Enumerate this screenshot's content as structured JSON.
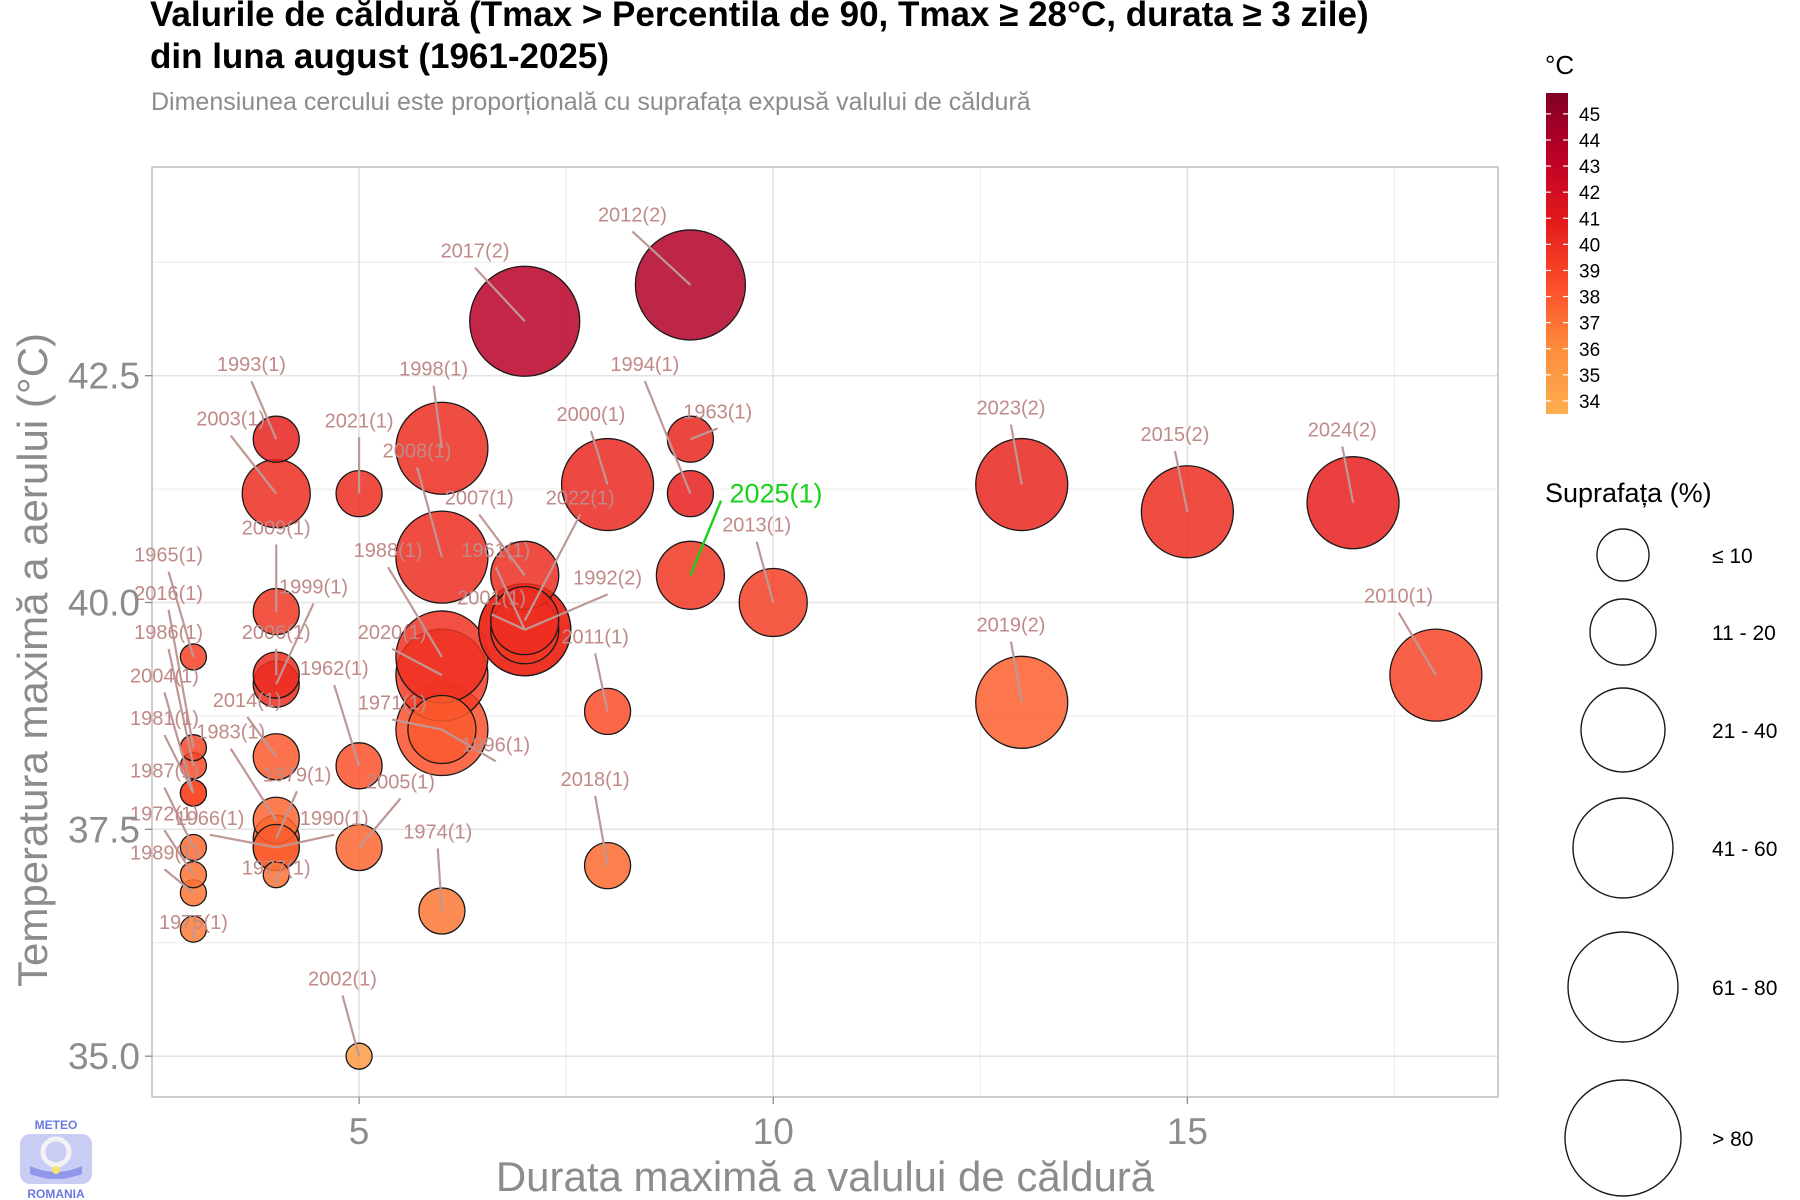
{
  "header": {
    "title_line1": "Valurile de căldură (Tmax > Percentila de 90, Tmax ≥ 28°C, durata ≥ 3 zile)",
    "title_line2": "din luna august (1961-2025)",
    "subtitle": "Dimensiunea cercului este proporțională cu suprafața expusă valului de căldură"
  },
  "logo": {
    "top_text": "METEO",
    "bottom_text": "ROMANIA",
    "color": "#6a78e0"
  },
  "chart_data": {
    "type": "scatter",
    "xlabel": "Durata maximă a valului de căldură",
    "ylabel": "Temperatura maximă a aerului (°C)",
    "xlim": [
      2.5,
      18.75
    ],
    "ylim": [
      34.55,
      44.8
    ],
    "x_ticks": [
      5,
      10,
      15
    ],
    "y_ticks": [
      35.0,
      37.5,
      40.0,
      42.5
    ],
    "x_tick_labels": [
      "5",
      "10",
      "15"
    ],
    "y_tick_labels": [
      "35.0",
      "37.5",
      "40.0",
      "42.5"
    ],
    "grid": true,
    "color_legend": {
      "title": "°C",
      "placement": "top-right",
      "min": 33.5,
      "max": 45.8,
      "labels": [
        "45",
        "44",
        "43",
        "42",
        "41",
        "40",
        "39",
        "38",
        "37",
        "36",
        "35",
        "34"
      ],
      "colors": [
        "#fdae4f",
        "#fd8d3c",
        "#fc4e2a",
        "#e31a1c",
        "#bd0026",
        "#800026"
      ]
    },
    "size_legend": {
      "title": "Suprafața (%)",
      "placement": "right",
      "classes": [
        {
          "label": "≤ 10",
          "r": 1
        },
        {
          "label": "11 - 20",
          "r": 2
        },
        {
          "label": "21 - 40",
          "r": 3
        },
        {
          "label": "41 - 60",
          "r": 4
        },
        {
          "label": "61 - 80",
          "r": 5
        },
        {
          "label": "> 80",
          "r": 6
        }
      ]
    },
    "points": [
      {
        "label": "2012(2)",
        "x": 9,
        "y": 43.5,
        "t": 43.8,
        "s": 5,
        "lx": 8.3,
        "ly": 44.2
      },
      {
        "label": "2017(2)",
        "x": 7,
        "y": 43.1,
        "t": 43.5,
        "s": 5,
        "lx": 6.4,
        "ly": 43.8
      },
      {
        "label": "1993(1)",
        "x": 4,
        "y": 41.8,
        "t": 40.5,
        "s": 2,
        "lx": 3.7,
        "ly": 42.55
      },
      {
        "label": "2003(1)",
        "x": 4,
        "y": 41.2,
        "t": 40.0,
        "s": 3,
        "lx": 3.45,
        "ly": 41.95
      },
      {
        "label": "2021(1)",
        "x": 5,
        "y": 41.2,
        "t": 40.0,
        "s": 2,
        "lx": 5.0,
        "ly": 41.93
      },
      {
        "label": "1998(1)",
        "x": 6,
        "y": 41.7,
        "t": 40.0,
        "s": 4,
        "lx": 5.9,
        "ly": 42.5
      },
      {
        "label": "2000(1)",
        "x": 8,
        "y": 41.3,
        "t": 40.2,
        "s": 4,
        "lx": 7.8,
        "ly": 42.0
      },
      {
        "label": "1994(1)",
        "x": 9,
        "y": 41.2,
        "t": 40.6,
        "s": 2,
        "lx": 8.45,
        "ly": 42.55
      },
      {
        "label": "1963(1)",
        "x": 9,
        "y": 41.8,
        "t": 40.3,
        "s": 2,
        "lx": 9.33,
        "ly": 42.03
      },
      {
        "label": "2008(1)",
        "x": 6,
        "y": 40.5,
        "t": 40.0,
        "s": 4,
        "lx": 5.7,
        "ly": 41.6
      },
      {
        "label": "2007(1)",
        "x": 7,
        "y": 40.3,
        "t": 40.0,
        "s": 3,
        "lx": 6.45,
        "ly": 41.08
      },
      {
        "label": "2022(1)",
        "x": 7,
        "y": 39.8,
        "t": 40.0,
        "s": 3,
        "lx": 7.67,
        "ly": 41.08
      },
      {
        "label": "2025(1)",
        "x": 9,
        "y": 40.3,
        "t": 39.5,
        "s": 3,
        "lx": 9.43,
        "ly": 41.1,
        "highlight": true
      },
      {
        "label": "2013(1)",
        "x": 10,
        "y": 40.0,
        "t": 39.2,
        "s": 3,
        "lx": 9.8,
        "ly": 40.78
      },
      {
        "label": "2023(2)",
        "x": 13,
        "y": 41.3,
        "t": 40.3,
        "s": 4,
        "lx": 12.87,
        "ly": 42.07
      },
      {
        "label": "2015(2)",
        "x": 15,
        "y": 41.0,
        "t": 40.0,
        "s": 4,
        "lx": 14.85,
        "ly": 41.78
      },
      {
        "label": "2024(2)",
        "x": 17,
        "y": 41.1,
        "t": 40.6,
        "s": 4,
        "lx": 16.87,
        "ly": 41.83
      },
      {
        "label": "2009(1)",
        "x": 4,
        "y": 39.9,
        "t": 39.5,
        "s": 2,
        "lx": 4.0,
        "ly": 40.75
      },
      {
        "label": "1999(1)",
        "x": 4,
        "y": 39.1,
        "t": 40.0,
        "s": 2,
        "lx": 4.45,
        "ly": 40.1
      },
      {
        "label": "1965(1)",
        "x": 3,
        "y": 39.4,
        "t": 39.0,
        "s": 1,
        "lx": 2.7,
        "ly": 40.45
      },
      {
        "label": "1961(1)",
        "x": 7,
        "y": 39.7,
        "t": 40.0,
        "s": 4,
        "lx": 6.65,
        "ly": 40.5
      },
      {
        "label": "1988(1)",
        "x": 6,
        "y": 39.4,
        "t": 39.8,
        "s": 4,
        "lx": 5.35,
        "ly": 40.5
      },
      {
        "label": "1992(2)",
        "x": 7,
        "y": 39.7,
        "t": 39.8,
        "s": 4,
        "lx": 8.0,
        "ly": 40.2
      },
      {
        "label": "2001(1)",
        "x": 7,
        "y": 39.7,
        "t": 39.5,
        "s": 3,
        "lx": 6.6,
        "ly": 39.98
      },
      {
        "label": "2016(1)",
        "x": 3,
        "y": 38.4,
        "t": 38.8,
        "s": 1,
        "lx": 2.7,
        "ly": 40.03
      },
      {
        "label": "2006(1)",
        "x": 4,
        "y": 39.2,
        "t": 40.0,
        "s": 2,
        "lx": 4.0,
        "ly": 39.6
      },
      {
        "label": "2020(1)",
        "x": 6,
        "y": 39.2,
        "t": 39.3,
        "s": 4,
        "lx": 5.4,
        "ly": 39.6
      },
      {
        "label": "2011(1)",
        "x": 8,
        "y": 38.8,
        "t": 38.5,
        "s": 2,
        "lx": 7.85,
        "ly": 39.55
      },
      {
        "label": "2019(2)",
        "x": 13,
        "y": 38.9,
        "t": 37.8,
        "s": 4,
        "lx": 12.87,
        "ly": 39.68
      },
      {
        "label": "2010(1)",
        "x": 18,
        "y": 39.2,
        "t": 38.9,
        "s": 4,
        "lx": 17.55,
        "ly": 40.0
      },
      {
        "label": "1986(1)",
        "x": 3,
        "y": 38.2,
        "t": 38.5,
        "s": 1,
        "lx": 2.7,
        "ly": 39.6
      },
      {
        "label": "1962(1)",
        "x": 5,
        "y": 38.2,
        "t": 38.3,
        "s": 2,
        "lx": 4.7,
        "ly": 39.2
      },
      {
        "label": "2004(1)",
        "x": 3,
        "y": 37.9,
        "t": 38.6,
        "s": 1,
        "lx": 2.65,
        "ly": 39.12
      },
      {
        "label": "2014(1)",
        "x": 4,
        "y": 38.3,
        "t": 38.0,
        "s": 2,
        "lx": 3.65,
        "ly": 38.85
      },
      {
        "label": "1971(1)",
        "x": 6,
        "y": 38.6,
        "t": 38.3,
        "s": 4,
        "lx": 5.4,
        "ly": 38.82
      },
      {
        "label": "1981(1)",
        "x": 3,
        "y": 37.9,
        "t": 38.0,
        "s": 1,
        "lx": 2.65,
        "ly": 38.65
      },
      {
        "label": "1983(1)",
        "x": 4,
        "y": 37.6,
        "t": 37.5,
        "s": 2,
        "lx": 3.45,
        "ly": 38.5
      },
      {
        "label": "1996(1)",
        "x": 6,
        "y": 38.6,
        "t": 38.0,
        "s": 3,
        "lx": 6.65,
        "ly": 38.36
      },
      {
        "label": "1979(1)",
        "x": 4,
        "y": 37.4,
        "t": 37.2,
        "s": 2,
        "lx": 4.25,
        "ly": 38.03
      },
      {
        "label": "2005(1)",
        "x": 5,
        "y": 37.3,
        "t": 37.5,
        "s": 2,
        "lx": 5.5,
        "ly": 37.95
      },
      {
        "label": "1987(1)",
        "x": 3,
        "y": 37.3,
        "t": 37.3,
        "s": 1,
        "lx": 2.65,
        "ly": 38.07
      },
      {
        "label": "2018(1)",
        "x": 8,
        "y": 37.1,
        "t": 37.4,
        "s": 2,
        "lx": 7.85,
        "ly": 37.98
      },
      {
        "label": "1972(1)",
        "x": 3,
        "y": 37.0,
        "t": 37.0,
        "s": 1,
        "lx": 2.65,
        "ly": 37.6
      },
      {
        "label": "1966(1)",
        "x": 4,
        "y": 37.3,
        "t": 37.8,
        "s": 2,
        "lx": 3.2,
        "ly": 37.55
      },
      {
        "label": "1990(1)",
        "x": 4,
        "y": 37.3,
        "t": 37.3,
        "s": 2,
        "lx": 4.7,
        "ly": 37.55
      },
      {
        "label": "1974(1)",
        "x": 6,
        "y": 36.6,
        "t": 36.8,
        "s": 2,
        "lx": 5.95,
        "ly": 37.4
      },
      {
        "label": "1989(1)",
        "x": 3,
        "y": 36.8,
        "t": 36.9,
        "s": 1,
        "lx": 2.65,
        "ly": 37.17
      },
      {
        "label": "1975(1)",
        "x": 3,
        "y": 36.4,
        "t": 36.6,
        "s": 1,
        "lx": 3.0,
        "ly": 36.4
      },
      {
        "label": "1977(1)",
        "x": 4,
        "y": 37.0,
        "t": 37.0,
        "s": 1,
        "lx": 4.0,
        "ly": 37.0
      },
      {
        "label": "2002(1)",
        "x": 5,
        "y": 35.0,
        "t": 34.9,
        "s": 1,
        "lx": 4.8,
        "ly": 35.78
      }
    ]
  }
}
